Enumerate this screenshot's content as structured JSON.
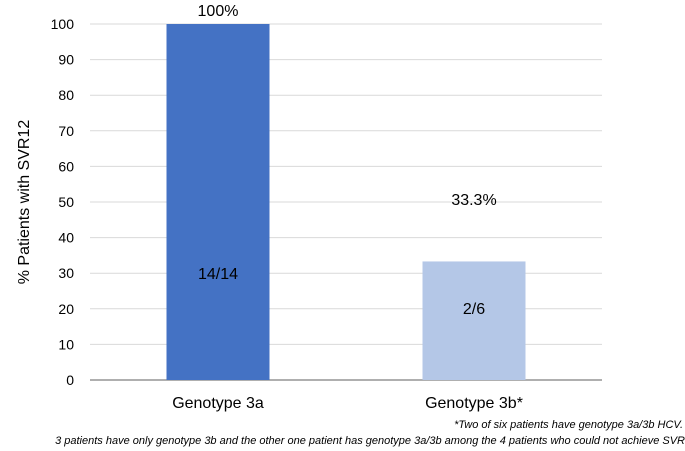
{
  "chart_data": {
    "type": "bar",
    "title": "",
    "xlabel": "",
    "ylabel": "% Patients with SVR12",
    "ylim": [
      0,
      100
    ],
    "yticks": [
      0,
      10,
      20,
      30,
      40,
      50,
      60,
      70,
      80,
      90,
      100
    ],
    "grid": true,
    "categories": [
      "Genotype 3a",
      "Genotype 3b*"
    ],
    "values": [
      100,
      33.3
    ],
    "value_labels": [
      "100%",
      "33.3%"
    ],
    "count_labels": [
      "14/14",
      "2/6"
    ],
    "colors": [
      "#4472c4",
      "#b4c7e7"
    ]
  },
  "footnotes": [
    "*Two of six patients have genotype 3a/3b HCV.",
    "3 patients have only genotype 3b and the other one patient has genotype 3a/3b among the 4 patients who could not achieve SVR"
  ]
}
